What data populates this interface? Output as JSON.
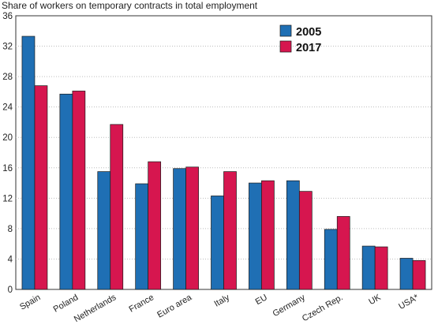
{
  "chart_data": {
    "type": "bar",
    "title": "Share of workers on temporary contracts in total employment",
    "xlabel": "",
    "ylabel": "",
    "ylim": [
      0,
      36
    ],
    "yticks": [
      "0",
      "4",
      "8",
      "12",
      "16",
      "20",
      "24",
      "28",
      "32",
      "36"
    ],
    "grid": true,
    "legend_position": "top-right",
    "categories": [
      "Spain",
      "Poland",
      "Netherlands",
      "France",
      "Euro area",
      "Italy",
      "EU",
      "Germany",
      "Czech Rep.",
      "UK",
      "USA*"
    ],
    "series": [
      {
        "name": "2005",
        "color": "#1f6fb4",
        "values": [
          33.3,
          25.7,
          15.5,
          13.9,
          15.9,
          12.3,
          14.0,
          14.3,
          7.9,
          5.7,
          4.1
        ]
      },
      {
        "name": "2017",
        "color": "#d6164f",
        "values": [
          26.8,
          26.1,
          21.7,
          16.8,
          16.1,
          15.5,
          14.3,
          12.9,
          9.6,
          5.6,
          3.8
        ]
      }
    ]
  }
}
